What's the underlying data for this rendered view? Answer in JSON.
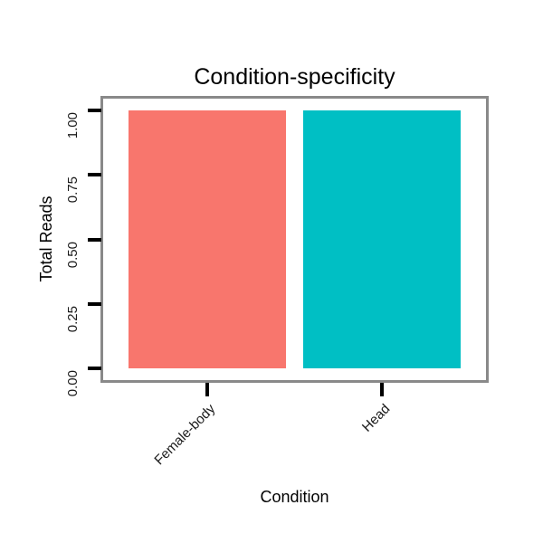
{
  "chart_data": {
    "type": "bar",
    "title": "Condition-specificity",
    "xlabel": "Condition",
    "ylabel": "Total Reads",
    "categories": [
      "Female-body",
      "Head"
    ],
    "values": [
      1.0,
      1.0
    ],
    "bar_colors": [
      "#F8766D",
      "#00BFC4"
    ],
    "ylim": [
      0,
      1
    ],
    "y_expansion": 0.05,
    "yticks": [
      {
        "value": 0.0,
        "label": "0.00"
      },
      {
        "value": 0.25,
        "label": "0.25"
      },
      {
        "value": 0.5,
        "label": "0.50"
      },
      {
        "value": 0.75,
        "label": "0.75"
      },
      {
        "value": 1.0,
        "label": "1.00"
      }
    ],
    "major_gridlines": [
      0.25,
      0.5,
      0.75
    ],
    "minor_gridlines": [
      0.125,
      0.375,
      0.625,
      0.875
    ],
    "grid": "horizontal",
    "legend": "none",
    "colors": {
      "panel_border": "#898989",
      "tick_mark": "#000000",
      "minor_grid": "#efefef",
      "major_grid": "#fafafa",
      "text": "#000000",
      "background": "#ffffff"
    }
  }
}
